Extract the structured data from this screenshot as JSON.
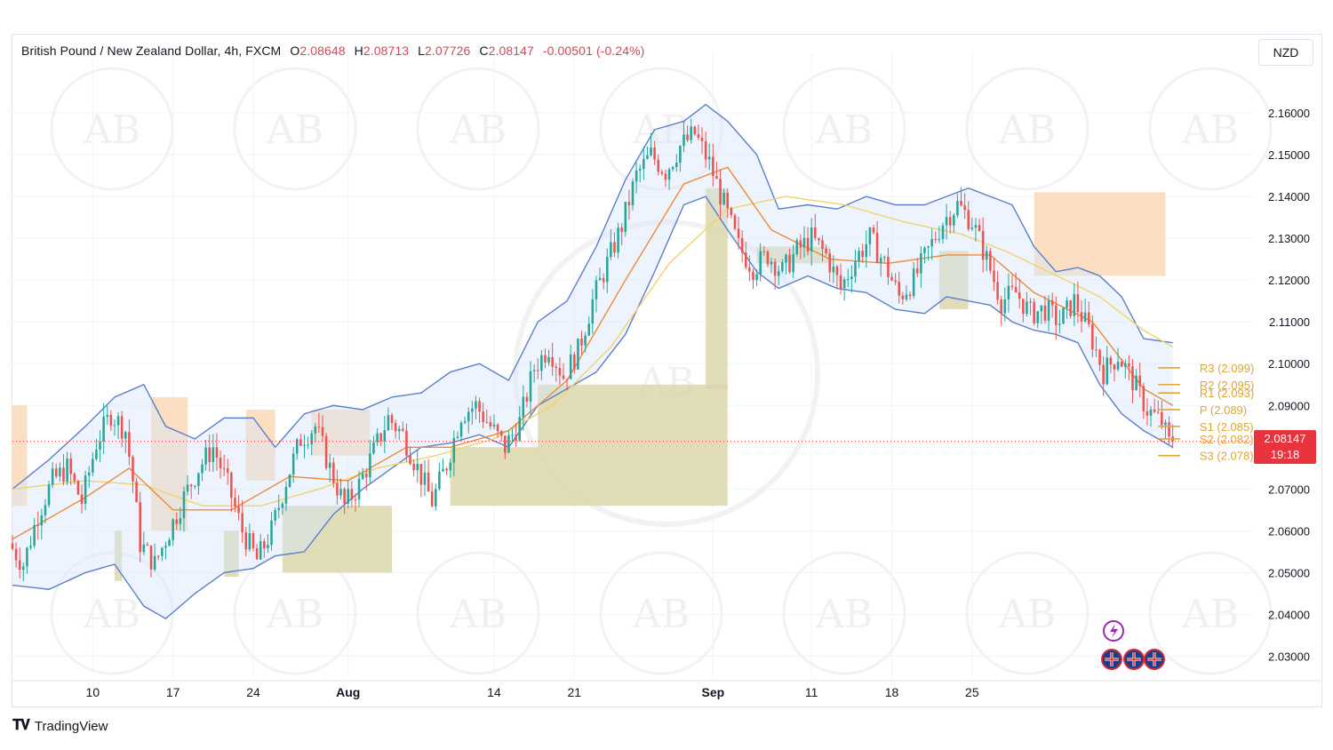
{
  "header": {
    "symbol": "British Pound / New Zealand Dollar, 4h, FXCM",
    "o_label": "O",
    "o_value": "2.08648",
    "h_label": "H",
    "h_value": "2.08713",
    "l_label": "L",
    "l_value": "2.07726",
    "c_label": "C",
    "c_value": "2.08147",
    "change": "-0.00501 (-0.24%)"
  },
  "currency_button": "NZD",
  "brand": "TradingView",
  "price_tag": {
    "price": "2.08147",
    "countdown": "19:18"
  },
  "colors": {
    "up": "#26a69a",
    "down": "#ef5350",
    "band": "#5b7fc9",
    "ema_orange": "#ef8a3a",
    "ema_yellow": "#f2d36b",
    "pivot": "#e0a534",
    "supply": "#fcd9b8",
    "demand": "#d9d5a8"
  },
  "icons": [
    "lightning-icon",
    "uk-flag-icon"
  ],
  "watermark": "AB",
  "chart_data": {
    "type": "candlestick",
    "title": "",
    "ylim": [
      2.025,
      2.17
    ],
    "y_ticks": [
      "2.16000",
      "2.15000",
      "2.14000",
      "2.13000",
      "2.12000",
      "2.11000",
      "2.10000",
      "2.09000",
      "2.07000",
      "2.06000",
      "2.05000",
      "2.04000",
      "2.03000"
    ],
    "x_ticks": [
      {
        "label": "10",
        "bold": false
      },
      {
        "label": "17",
        "bold": false
      },
      {
        "label": "24",
        "bold": false
      },
      {
        "label": "Aug",
        "bold": true
      },
      {
        "label": "14",
        "bold": false
      },
      {
        "label": "21",
        "bold": false
      },
      {
        "label": "Sep",
        "bold": true
      },
      {
        "label": "11",
        "bold": false
      },
      {
        "label": "18",
        "bold": false
      },
      {
        "label": "25",
        "bold": false
      }
    ],
    "path_points": [
      [
        0,
        2.057
      ],
      [
        4,
        2.052
      ],
      [
        8,
        2.064
      ],
      [
        12,
        2.072
      ],
      [
        16,
        2.075
      ],
      [
        20,
        2.067
      ],
      [
        24,
        2.081
      ],
      [
        28,
        2.088
      ],
      [
        32,
        2.084
      ],
      [
        34,
        2.072
      ],
      [
        36,
        2.057
      ],
      [
        40,
        2.052
      ],
      [
        44,
        2.06
      ],
      [
        48,
        2.068
      ],
      [
        52,
        2.075
      ],
      [
        56,
        2.08
      ],
      [
        60,
        2.071
      ],
      [
        64,
        2.06
      ],
      [
        68,
        2.053
      ],
      [
        72,
        2.06
      ],
      [
        76,
        2.072
      ],
      [
        80,
        2.082
      ],
      [
        84,
        2.085
      ],
      [
        88,
        2.075
      ],
      [
        92,
        2.066
      ],
      [
        96,
        2.071
      ],
      [
        100,
        2.079
      ],
      [
        104,
        2.087
      ],
      [
        108,
        2.083
      ],
      [
        112,
        2.075
      ],
      [
        116,
        2.067
      ],
      [
        120,
        2.076
      ],
      [
        124,
        2.088
      ],
      [
        128,
        2.09
      ],
      [
        132,
        2.085
      ],
      [
        136,
        2.08
      ],
      [
        140,
        2.086
      ],
      [
        144,
        2.099
      ],
      [
        148,
        2.104
      ],
      [
        152,
        2.097
      ],
      [
        156,
        2.103
      ],
      [
        160,
        2.115
      ],
      [
        164,
        2.124
      ],
      [
        168,
        2.133
      ],
      [
        172,
        2.145
      ],
      [
        176,
        2.15
      ],
      [
        180,
        2.146
      ],
      [
        184,
        2.152
      ],
      [
        188,
        2.155
      ],
      [
        192,
        2.148
      ],
      [
        196,
        2.138
      ],
      [
        200,
        2.128
      ],
      [
        204,
        2.123
      ],
      [
        208,
        2.126
      ],
      [
        212,
        2.122
      ],
      [
        216,
        2.127
      ],
      [
        220,
        2.13
      ],
      [
        224,
        2.126
      ],
      [
        228,
        2.118
      ],
      [
        232,
        2.125
      ],
      [
        236,
        2.13
      ],
      [
        240,
        2.124
      ],
      [
        244,
        2.116
      ],
      [
        248,
        2.12
      ],
      [
        252,
        2.127
      ],
      [
        256,
        2.134
      ],
      [
        260,
        2.138
      ],
      [
        264,
        2.134
      ],
      [
        268,
        2.125
      ],
      [
        272,
        2.115
      ],
      [
        276,
        2.117
      ],
      [
        280,
        2.112
      ],
      [
        284,
        2.113
      ],
      [
        288,
        2.11
      ],
      [
        292,
        2.115
      ],
      [
        296,
        2.108
      ],
      [
        300,
        2.098
      ],
      [
        304,
        2.102
      ],
      [
        308,
        2.096
      ],
      [
        312,
        2.089
      ],
      [
        316,
        2.086
      ],
      [
        318,
        2.081
      ]
    ],
    "bollinger": {
      "upper": [
        [
          0,
          2.07
        ],
        [
          10,
          2.077
        ],
        [
          20,
          2.085
        ],
        [
          28,
          2.092
        ],
        [
          36,
          2.095
        ],
        [
          42,
          2.085
        ],
        [
          50,
          2.082
        ],
        [
          58,
          2.087
        ],
        [
          66,
          2.087
        ],
        [
          72,
          2.08
        ],
        [
          80,
          2.088
        ],
        [
          88,
          2.09
        ],
        [
          96,
          2.089
        ],
        [
          104,
          2.092
        ],
        [
          112,
          2.093
        ],
        [
          120,
          2.098
        ],
        [
          128,
          2.1
        ],
        [
          136,
          2.096
        ],
        [
          144,
          2.11
        ],
        [
          152,
          2.115
        ],
        [
          160,
          2.128
        ],
        [
          168,
          2.144
        ],
        [
          176,
          2.156
        ],
        [
          184,
          2.158
        ],
        [
          190,
          2.162
        ],
        [
          196,
          2.158
        ],
        [
          204,
          2.15
        ],
        [
          210,
          2.137
        ],
        [
          218,
          2.138
        ],
        [
          226,
          2.137
        ],
        [
          234,
          2.14
        ],
        [
          242,
          2.138
        ],
        [
          250,
          2.138
        ],
        [
          256,
          2.14
        ],
        [
          262,
          2.142
        ],
        [
          268,
          2.14
        ],
        [
          274,
          2.138
        ],
        [
          280,
          2.128
        ],
        [
          286,
          2.122
        ],
        [
          292,
          2.123
        ],
        [
          298,
          2.121
        ],
        [
          304,
          2.116
        ],
        [
          310,
          2.106
        ],
        [
          318,
          2.105
        ]
      ],
      "lower": [
        [
          0,
          2.047
        ],
        [
          10,
          2.046
        ],
        [
          20,
          2.05
        ],
        [
          28,
          2.052
        ],
        [
          36,
          2.042
        ],
        [
          42,
          2.039
        ],
        [
          50,
          2.045
        ],
        [
          58,
          2.05
        ],
        [
          66,
          2.051
        ],
        [
          72,
          2.054
        ],
        [
          80,
          2.055
        ],
        [
          88,
          2.064
        ],
        [
          96,
          2.07
        ],
        [
          104,
          2.075
        ],
        [
          112,
          2.08
        ],
        [
          120,
          2.081
        ],
        [
          128,
          2.083
        ],
        [
          136,
          2.08
        ],
        [
          144,
          2.09
        ],
        [
          152,
          2.094
        ],
        [
          160,
          2.098
        ],
        [
          168,
          2.107
        ],
        [
          176,
          2.122
        ],
        [
          184,
          2.138
        ],
        [
          190,
          2.14
        ],
        [
          196,
          2.132
        ],
        [
          204,
          2.122
        ],
        [
          210,
          2.118
        ],
        [
          218,
          2.121
        ],
        [
          226,
          2.118
        ],
        [
          234,
          2.117
        ],
        [
          242,
          2.113
        ],
        [
          250,
          2.112
        ],
        [
          256,
          2.116
        ],
        [
          262,
          2.115
        ],
        [
          268,
          2.114
        ],
        [
          274,
          2.11
        ],
        [
          280,
          2.108
        ],
        [
          286,
          2.107
        ],
        [
          292,
          2.105
        ],
        [
          298,
          2.095
        ],
        [
          304,
          2.088
        ],
        [
          310,
          2.084
        ],
        [
          318,
          2.08
        ]
      ]
    },
    "ema_fast": [
      [
        0,
        2.058
      ],
      [
        20,
        2.068
      ],
      [
        32,
        2.075
      ],
      [
        44,
        2.065
      ],
      [
        60,
        2.065
      ],
      [
        76,
        2.073
      ],
      [
        92,
        2.072
      ],
      [
        108,
        2.08
      ],
      [
        120,
        2.08
      ],
      [
        136,
        2.084
      ],
      [
        152,
        2.096
      ],
      [
        168,
        2.12
      ],
      [
        184,
        2.143
      ],
      [
        196,
        2.147
      ],
      [
        208,
        2.132
      ],
      [
        224,
        2.125
      ],
      [
        240,
        2.124
      ],
      [
        256,
        2.126
      ],
      [
        268,
        2.126
      ],
      [
        280,
        2.117
      ],
      [
        296,
        2.11
      ],
      [
        310,
        2.094
      ],
      [
        318,
        2.09
      ]
    ],
    "ema_slow": [
      [
        0,
        2.07
      ],
      [
        20,
        2.072
      ],
      [
        36,
        2.071
      ],
      [
        52,
        2.066
      ],
      [
        68,
        2.066
      ],
      [
        84,
        2.07
      ],
      [
        100,
        2.075
      ],
      [
        116,
        2.078
      ],
      [
        132,
        2.082
      ],
      [
        148,
        2.09
      ],
      [
        164,
        2.104
      ],
      [
        180,
        2.124
      ],
      [
        196,
        2.137
      ],
      [
        212,
        2.14
      ],
      [
        228,
        2.138
      ],
      [
        244,
        2.134
      ],
      [
        260,
        2.131
      ],
      [
        272,
        2.127
      ],
      [
        284,
        2.122
      ],
      [
        298,
        2.116
      ],
      [
        310,
        2.108
      ],
      [
        318,
        2.104
      ]
    ],
    "zones": [
      {
        "kind": "supply",
        "x": [
          0,
          4
        ],
        "y": [
          2.066,
          2.09
        ]
      },
      {
        "kind": "supply",
        "x": [
          38,
          48
        ],
        "y": [
          2.06,
          2.092
        ]
      },
      {
        "kind": "supply",
        "x": [
          64,
          72
        ],
        "y": [
          2.072,
          2.089
        ]
      },
      {
        "kind": "supply",
        "x": [
          82,
          98
        ],
        "y": [
          2.078,
          2.089
        ]
      },
      {
        "kind": "supply",
        "x": [
          280,
          316
        ],
        "y": [
          2.121,
          2.141
        ]
      },
      {
        "kind": "demand",
        "x": [
          28,
          30
        ],
        "y": [
          2.048,
          2.06
        ]
      },
      {
        "kind": "demand",
        "x": [
          58,
          62
        ],
        "y": [
          2.049,
          2.06
        ]
      },
      {
        "kind": "demand",
        "x": [
          74,
          104
        ],
        "y": [
          2.05,
          2.066
        ]
      },
      {
        "kind": "demand",
        "x": [
          120,
          144
        ],
        "y": [
          2.066,
          2.08
        ]
      },
      {
        "kind": "demand",
        "x": [
          144,
          196
        ],
        "y": [
          2.066,
          2.095
        ]
      },
      {
        "kind": "demand",
        "x": [
          190,
          196
        ],
        "y": [
          2.094,
          2.142
        ]
      },
      {
        "kind": "demand",
        "x": [
          204,
          224
        ],
        "y": [
          2.124,
          2.128
        ]
      },
      {
        "kind": "demand",
        "x": [
          254,
          262
        ],
        "y": [
          2.113,
          2.127
        ]
      }
    ],
    "pivots": [
      {
        "label": "R3 (2.099)",
        "value": 2.099
      },
      {
        "label": "R2 (2.095)",
        "value": 2.095
      },
      {
        "label": "R1 (2.093)",
        "value": 2.093
      },
      {
        "label": "P (2.089)",
        "value": 2.089
      },
      {
        "label": "S1 (2.085)",
        "value": 2.085
      },
      {
        "label": "S2 (2.082)",
        "value": 2.082
      },
      {
        "label": "S3 (2.078)",
        "value": 2.078
      }
    ],
    "last_price": 2.08147
  }
}
